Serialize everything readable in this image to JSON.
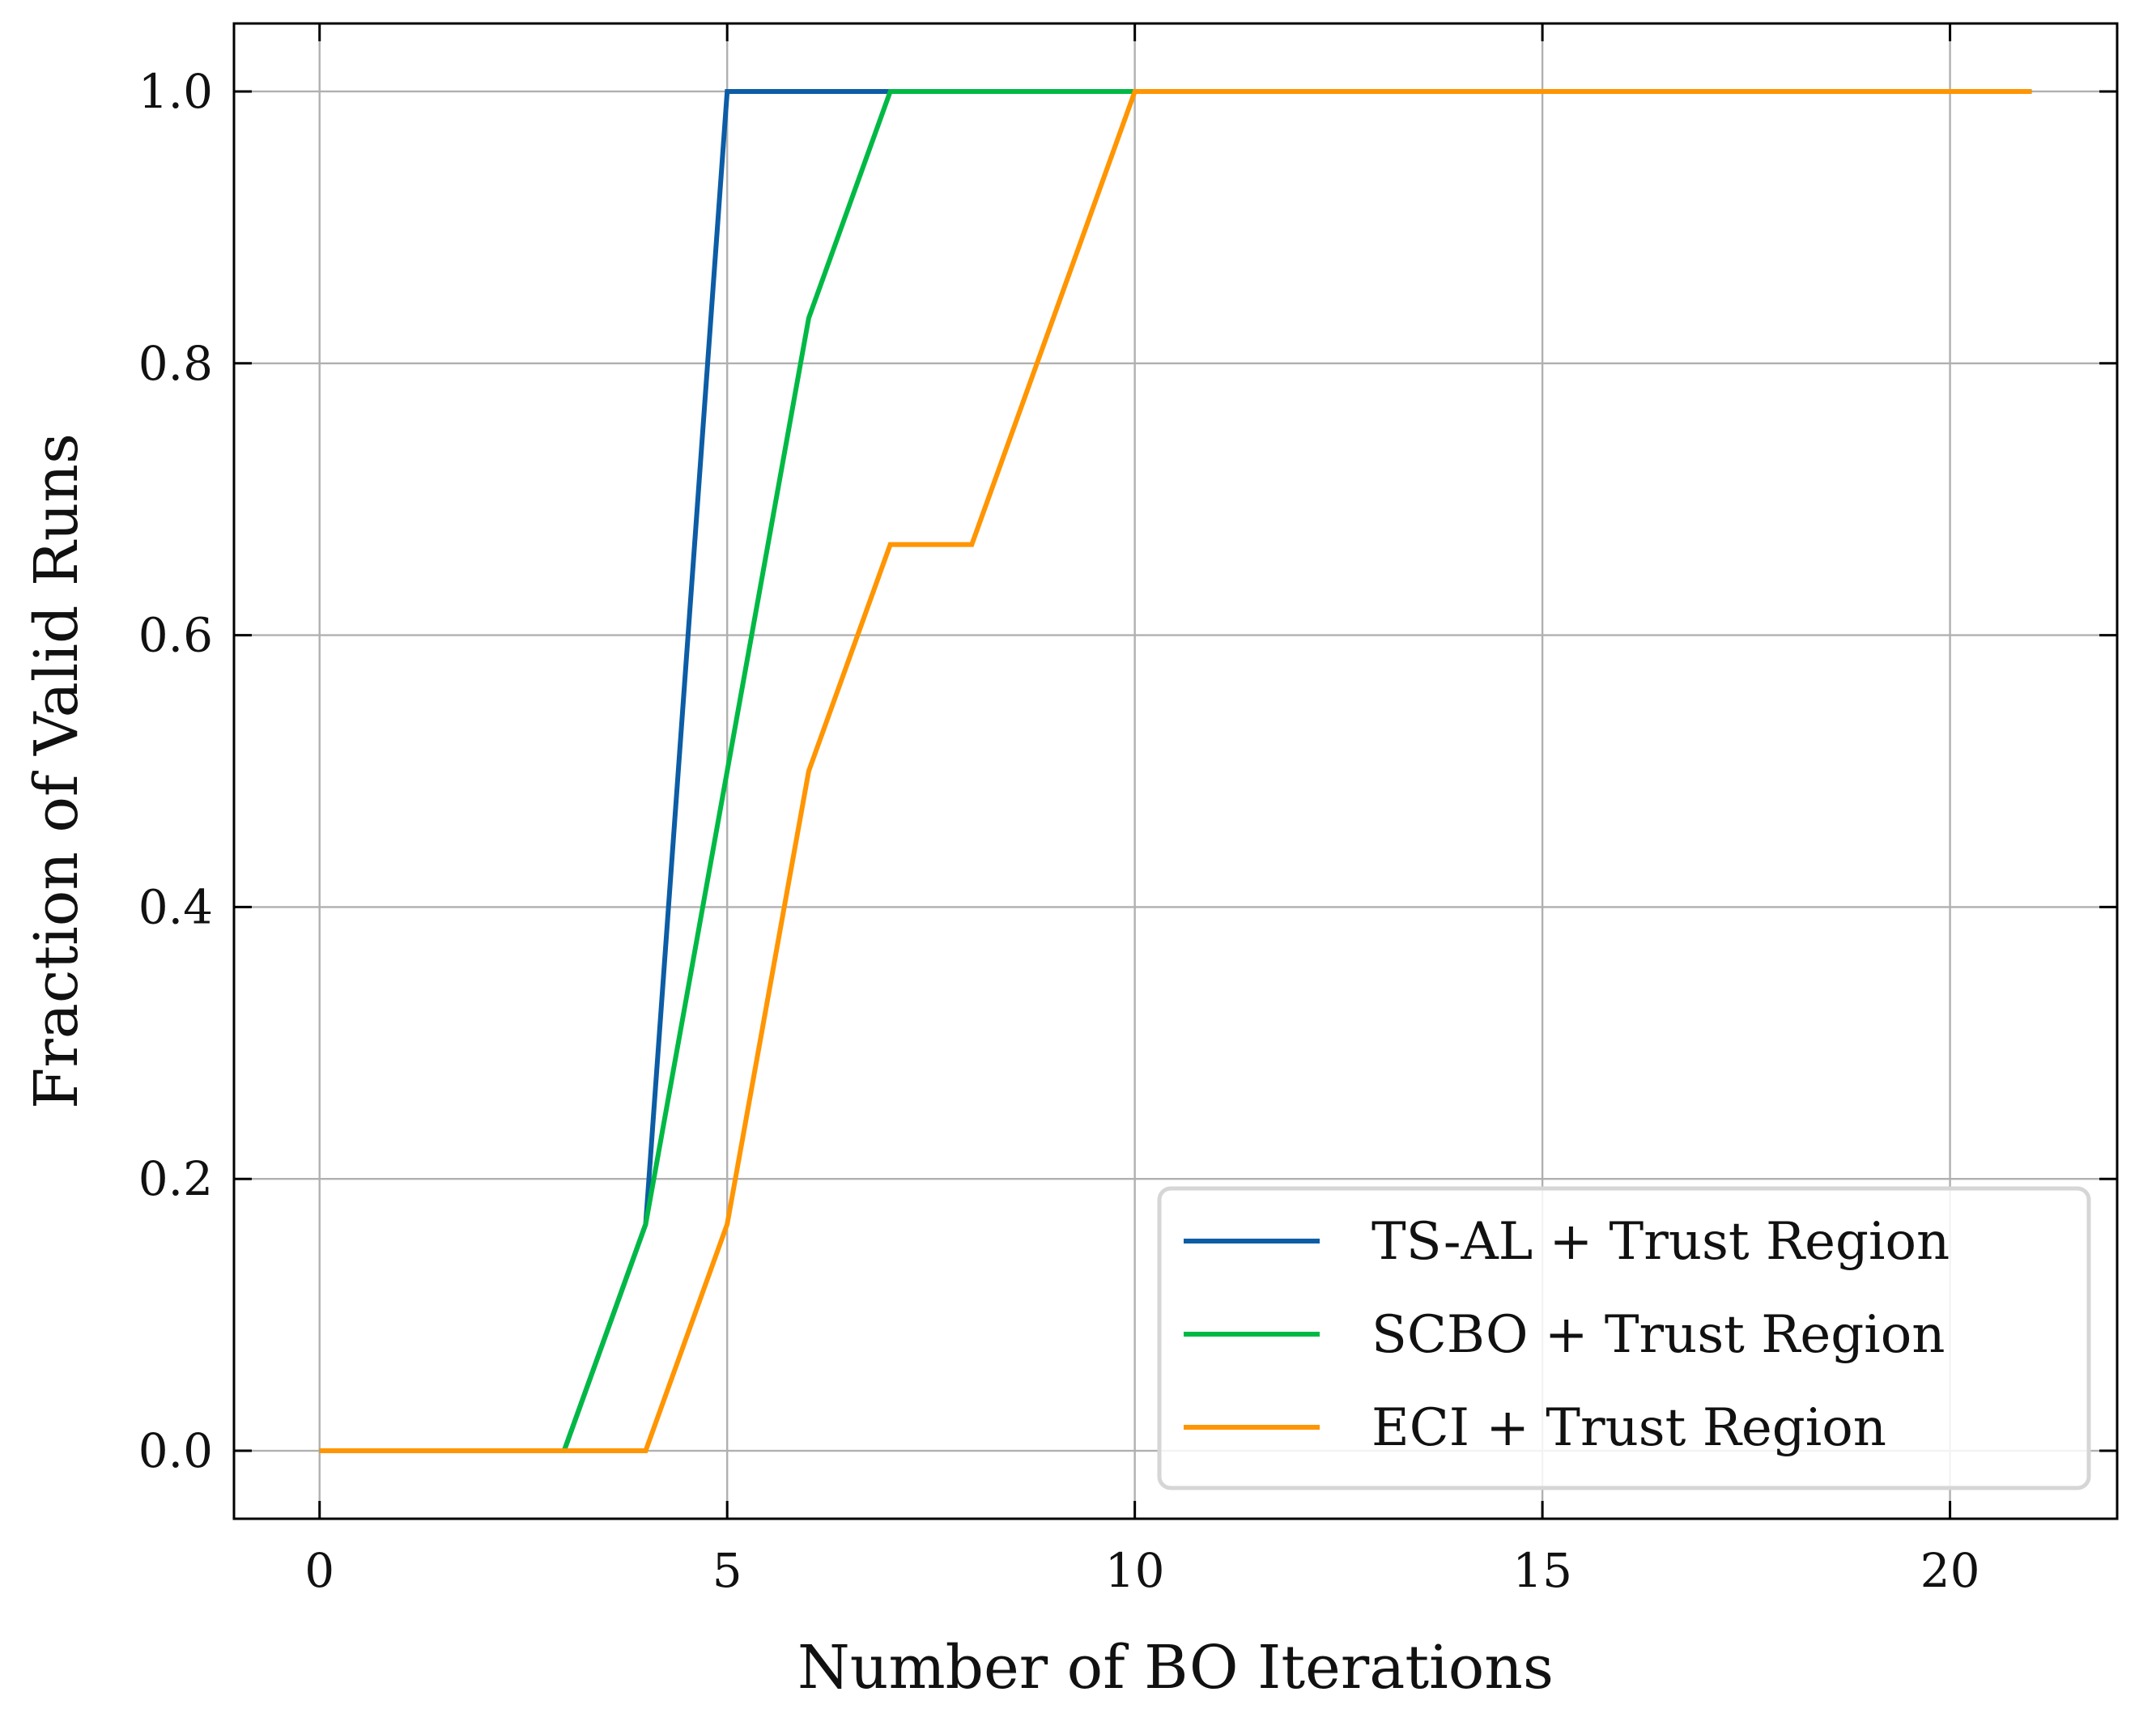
{
  "chart_data": {
    "type": "line",
    "title": "",
    "xlabel": "Number of BO Iterations",
    "ylabel": "Fraction of Valid Runs",
    "xlim": [
      -1.05,
      22.05
    ],
    "ylim": [
      -0.05,
      1.05
    ],
    "xticks": [
      0,
      5,
      10,
      15,
      20
    ],
    "yticks": [
      0.0,
      0.2,
      0.4,
      0.6,
      0.8,
      1.0
    ],
    "xtick_labels": [
      "0",
      "5",
      "10",
      "15",
      "20"
    ],
    "ytick_labels": [
      "0.0",
      "0.2",
      "0.4",
      "0.6",
      "0.8",
      "1.0"
    ],
    "grid": true,
    "legend_position": "bottom-right",
    "series": [
      {
        "name": "TS-AL + Trust Region",
        "color": "#0c5da5",
        "x": [
          0,
          1,
          2,
          3,
          4,
          5,
          6,
          7,
          8,
          9,
          10,
          11,
          12,
          13,
          14,
          15,
          16,
          17,
          18,
          19,
          20,
          21
        ],
        "y": [
          0,
          0,
          0,
          0,
          0.1667,
          1,
          1,
          1,
          1,
          1,
          1,
          1,
          1,
          1,
          1,
          1,
          1,
          1,
          1,
          1,
          1,
          1
        ]
      },
      {
        "name": "SCBO + Trust Region",
        "color": "#00b945",
        "x": [
          0,
          1,
          2,
          3,
          4,
          5,
          6,
          7,
          8,
          9,
          10,
          11,
          12,
          13,
          14,
          15,
          16,
          17,
          18,
          19,
          20,
          21
        ],
        "y": [
          0,
          0,
          0,
          0,
          0.1667,
          0.5,
          0.8333,
          1,
          1,
          1,
          1,
          1,
          1,
          1,
          1,
          1,
          1,
          1,
          1,
          1,
          1,
          1
        ]
      },
      {
        "name": "ECI + Trust Region",
        "color": "#ff9500",
        "x": [
          0,
          1,
          2,
          3,
          4,
          5,
          6,
          7,
          8,
          9,
          10,
          11,
          12,
          13,
          14,
          15,
          16,
          17,
          18,
          19,
          20,
          21
        ],
        "y": [
          0,
          0,
          0,
          0,
          0,
          0.1667,
          0.5,
          0.6667,
          0.6667,
          0.8333,
          1,
          1,
          1,
          1,
          1,
          1,
          1,
          1,
          1,
          1,
          1,
          1
        ]
      }
    ]
  }
}
